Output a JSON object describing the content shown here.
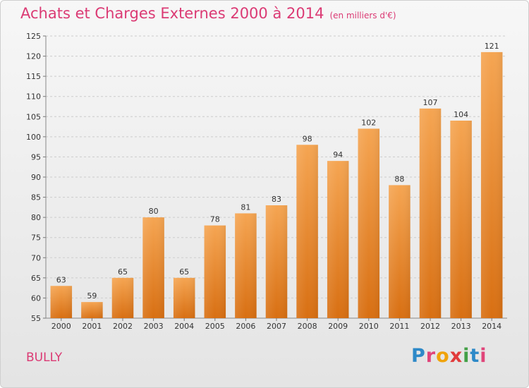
{
  "header": {
    "title": "Achats et Charges Externes 2000 à 2014",
    "subtitle": "(en milliers d'€)"
  },
  "footer": {
    "commune": "BULLY",
    "logo_text": "Proxiti"
  },
  "colors": {
    "title": "#db3a74",
    "bar_top": "#f5a552",
    "bar_bottom": "#d86f12",
    "grid": "#cccccc"
  },
  "chart_data": {
    "type": "bar",
    "title": "Achats et Charges Externes 2000 à 2014",
    "subtitle": "(en milliers d'€)",
    "xlabel": "",
    "ylabel": "",
    "categories": [
      "2000",
      "2001",
      "2002",
      "2003",
      "2004",
      "2005",
      "2006",
      "2007",
      "2008",
      "2009",
      "2010",
      "2011",
      "2012",
      "2013",
      "2014"
    ],
    "values": [
      63,
      59,
      65,
      80,
      65,
      78,
      81,
      83,
      98,
      94,
      102,
      88,
      107,
      104,
      121
    ],
    "ylim": [
      55,
      125
    ],
    "yticks": [
      55,
      60,
      65,
      70,
      75,
      80,
      85,
      90,
      95,
      100,
      105,
      110,
      115,
      120,
      125
    ],
    "grid": true,
    "data_labels": true
  }
}
